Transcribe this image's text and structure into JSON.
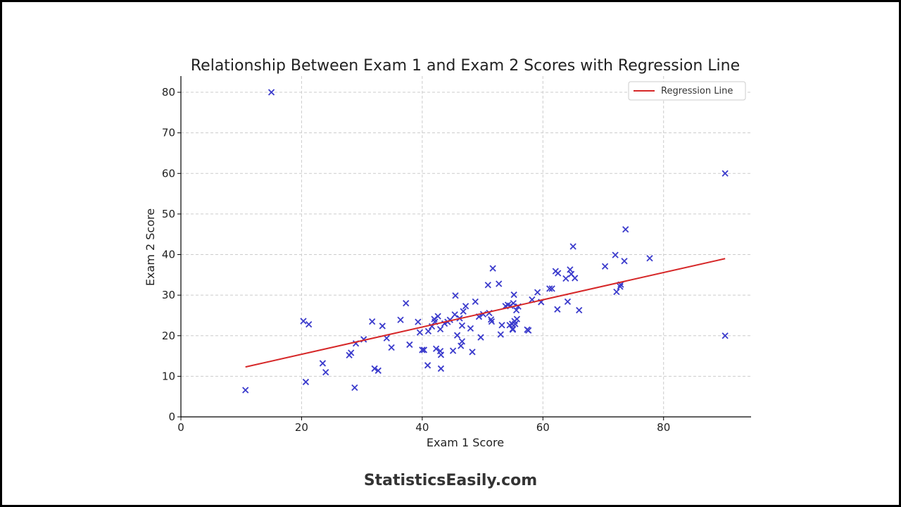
{
  "brand": {
    "text": "StatisticsEasily.com"
  },
  "chart_data": {
    "type": "scatter",
    "title": "Relationship Between Exam 1 and Exam 2 Scores with Regression Line",
    "xlabel": "Exam 1 Score",
    "ylabel": "Exam 2 Score",
    "xlim": [
      0,
      94.5
    ],
    "ylim": [
      0,
      84
    ],
    "xticks": [
      0,
      20,
      40,
      60,
      80
    ],
    "yticks": [
      0,
      10,
      20,
      30,
      40,
      50,
      60,
      70,
      80
    ],
    "grid": true,
    "legend": {
      "position": "top-right",
      "entries": [
        "Regression Line"
      ]
    },
    "colors": {
      "points": "#3b3bcc",
      "regression": "#d62728",
      "grid": "#cccccc"
    },
    "series": [
      {
        "marker": "x",
        "points": [
          [
            10.7,
            6.6
          ],
          [
            15,
            80
          ],
          [
            20.3,
            23.6
          ],
          [
            21.2,
            22.8
          ],
          [
            20.7,
            8.6
          ],
          [
            23.5,
            13.2
          ],
          [
            24,
            11
          ],
          [
            27.9,
            15.2
          ],
          [
            28.2,
            15.8
          ],
          [
            28.8,
            7.2
          ],
          [
            29,
            18.1
          ],
          [
            30.3,
            19.1
          ],
          [
            31.7,
            23.5
          ],
          [
            32.1,
            11.9
          ],
          [
            32.7,
            11.4
          ],
          [
            33.4,
            22.4
          ],
          [
            34.1,
            19.4
          ],
          [
            34.9,
            17.1
          ],
          [
            36.4,
            23.9
          ],
          [
            37.3,
            28
          ],
          [
            37.9,
            17.8
          ],
          [
            39.3,
            23.4
          ],
          [
            39.6,
            20.8
          ],
          [
            40,
            16.5
          ],
          [
            40.3,
            16.5
          ],
          [
            40.9,
            12.7
          ],
          [
            41,
            21.1
          ],
          [
            41.6,
            22.3
          ],
          [
            42,
            24.1
          ],
          [
            42.1,
            23.4
          ],
          [
            42.3,
            16.8
          ],
          [
            42.6,
            24.8
          ],
          [
            43,
            21.6
          ],
          [
            43,
            16.2
          ],
          [
            43.1,
            15.3
          ],
          [
            43.1,
            11.9
          ],
          [
            43.7,
            23
          ],
          [
            44.2,
            23.4
          ],
          [
            44.6,
            23.9
          ],
          [
            45.1,
            16.3
          ],
          [
            45.4,
            25.2
          ],
          [
            45.5,
            29.9
          ],
          [
            45.8,
            20.1
          ],
          [
            46.2,
            24.3
          ],
          [
            46.4,
            17.5
          ],
          [
            46.6,
            18.6
          ],
          [
            46.6,
            22.5
          ],
          [
            46.8,
            26
          ],
          [
            47.2,
            27.3
          ],
          [
            48,
            21.8
          ],
          [
            48.3,
            16
          ],
          [
            48.8,
            28.4
          ],
          [
            49.4,
            24.7
          ],
          [
            49.7,
            19.6
          ],
          [
            50.1,
            25.3
          ],
          [
            50.9,
            32.5
          ],
          [
            51.1,
            25.6
          ],
          [
            51.4,
            24
          ],
          [
            51.5,
            23.5
          ],
          [
            51.7,
            36.6
          ],
          [
            52.7,
            32.8
          ],
          [
            53,
            20.3
          ],
          [
            53.2,
            22.6
          ],
          [
            53.8,
            27.3
          ],
          [
            54.2,
            27.6
          ],
          [
            54.5,
            22.6
          ],
          [
            54.6,
            27.4
          ],
          [
            54.9,
            22.9
          ],
          [
            55,
            21.5
          ],
          [
            55,
            21.7
          ],
          [
            55.1,
            28
          ],
          [
            55.2,
            30.1
          ],
          [
            55.3,
            23.6
          ],
          [
            55.4,
            22.9
          ],
          [
            55.6,
            26.3
          ],
          [
            55.7,
            24.1
          ],
          [
            55.9,
            27.2
          ],
          [
            57.4,
            21.5
          ],
          [
            57.6,
            21.3
          ],
          [
            58.2,
            28.9
          ],
          [
            59.1,
            30.7
          ],
          [
            59.7,
            28.3
          ],
          [
            61.1,
            31.6
          ],
          [
            61.5,
            31.6
          ],
          [
            62.1,
            35.9
          ],
          [
            62.4,
            26.5
          ],
          [
            62.5,
            35.4
          ],
          [
            63.8,
            34.1
          ],
          [
            64.1,
            28.4
          ],
          [
            64.5,
            36.3
          ],
          [
            64.7,
            35.2
          ],
          [
            65,
            42
          ],
          [
            65.3,
            34.2
          ],
          [
            66,
            26.3
          ],
          [
            70.3,
            37.1
          ],
          [
            72,
            39.9
          ],
          [
            72.2,
            30.8
          ],
          [
            72.8,
            32.1
          ],
          [
            72.9,
            32.6
          ],
          [
            73.5,
            38.4
          ],
          [
            73.7,
            46.2
          ],
          [
            77.7,
            39.1
          ],
          [
            90.2,
            60
          ],
          [
            90.2,
            20
          ]
        ]
      },
      {
        "name": "Regression Line",
        "type": "line",
        "x": [
          10.7,
          90.2
        ],
        "y": [
          12.3,
          39
        ]
      }
    ]
  }
}
